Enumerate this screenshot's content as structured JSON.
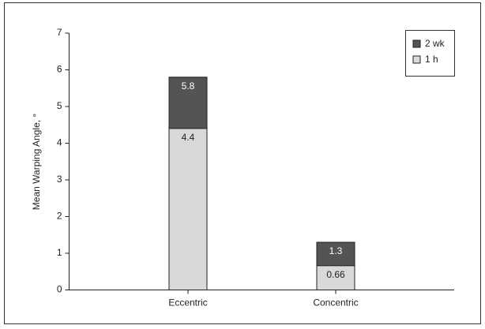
{
  "chart_data": {
    "type": "bar",
    "y_label": "Mean Warping Angle, °",
    "categories": [
      "Eccentric",
      "Concentric"
    ],
    "series": [
      {
        "name": "2 wk",
        "color": "#545454",
        "label_color": "#ffffff",
        "values": [
          5.8,
          1.3
        ]
      },
      {
        "name": "1 h",
        "color": "#d9d9d9",
        "label_color": "#222222",
        "values": [
          4.4,
          0.66
        ]
      }
    ],
    "ylim": [
      0,
      7
    ],
    "yticks": [
      0,
      1,
      2,
      3,
      4,
      5,
      6,
      7
    ],
    "legend": "upper right"
  }
}
